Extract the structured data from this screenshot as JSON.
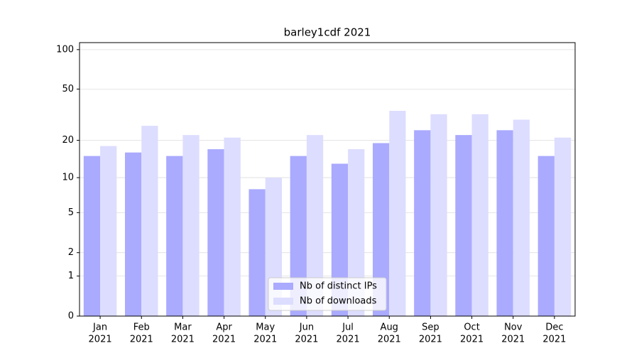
{
  "chart_data": {
    "type": "bar",
    "title": "barley1cdf 2021",
    "categories": [
      [
        "Jan",
        "2021"
      ],
      [
        "Feb",
        "2021"
      ],
      [
        "Mar",
        "2021"
      ],
      [
        "Apr",
        "2021"
      ],
      [
        "May",
        "2021"
      ],
      [
        "Jun",
        "2021"
      ],
      [
        "Jul",
        "2021"
      ],
      [
        "Aug",
        "2021"
      ],
      [
        "Sep",
        "2021"
      ],
      [
        "Oct",
        "2021"
      ],
      [
        "Nov",
        "2021"
      ],
      [
        "Dec",
        "2021"
      ]
    ],
    "series": [
      {
        "name": "Nb of distinct IPs",
        "color": "#aaaaff",
        "values": [
          15,
          16,
          15,
          17,
          8,
          15,
          13,
          19,
          24,
          22,
          24,
          15
        ]
      },
      {
        "name": "Nb of downloads",
        "color": "#ddddff",
        "values": [
          18,
          26,
          22,
          21,
          10,
          22,
          17,
          34,
          32,
          32,
          29,
          21
        ]
      }
    ],
    "yscale": "log1p",
    "ylim": [
      0,
      113
    ],
    "yticks": [
      0,
      1,
      2,
      5,
      10,
      20,
      50,
      100
    ],
    "grid": true,
    "legend": "lower center"
  }
}
